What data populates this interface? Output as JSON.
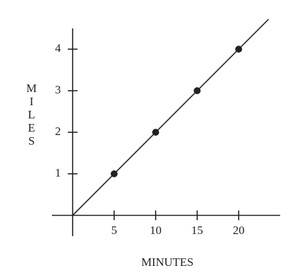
{
  "chart_data": {
    "type": "scatter",
    "x_label": "MINUTES",
    "y_label": "MILES",
    "x": [
      5,
      10,
      15,
      20
    ],
    "values": [
      1,
      2,
      3,
      4
    ],
    "color": "#222222",
    "line_x": [
      0,
      23.6
    ],
    "line_values": [
      0,
      4.72
    ],
    "xlim": [
      -2.5,
      25
    ],
    "ylim": [
      -0.5,
      4.5
    ],
    "xticks": [
      5,
      10,
      15,
      20
    ],
    "yticks": [
      1,
      2,
      3,
      4
    ]
  }
}
